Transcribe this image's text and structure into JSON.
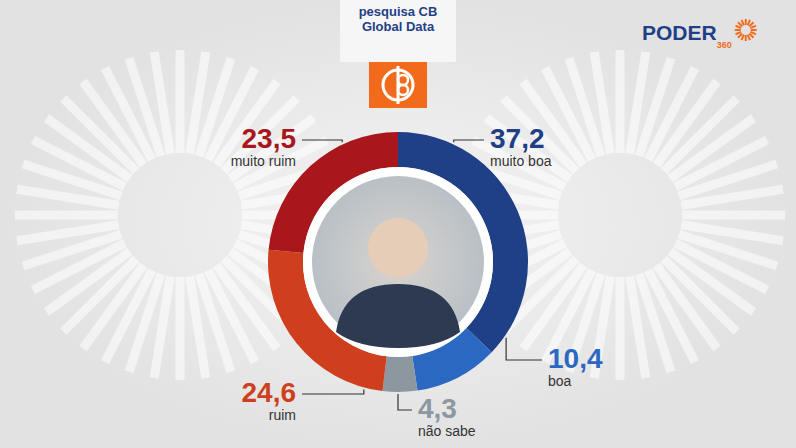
{
  "chart_data": {
    "type": "pie",
    "title": "pesquisa CB Global Data",
    "annotations": [
      "PODER360"
    ],
    "categories": [
      "muito boa",
      "boa",
      "não sabe",
      "ruim",
      "muito ruim"
    ],
    "values": [
      37.2,
      10.4,
      4.3,
      24.6,
      23.5
    ],
    "value_labels": [
      "37,2",
      "10,4",
      "4,3",
      "24,6",
      "23,5"
    ],
    "colors": [
      "#1f3f86",
      "#2a68c2",
      "#8c979f",
      "#cf3f1e",
      "#a9171c"
    ],
    "data_labels": true
  }
}
